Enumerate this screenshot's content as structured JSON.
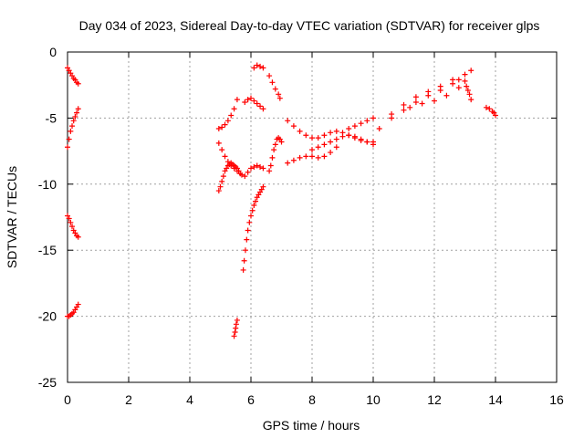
{
  "chart_data": {
    "type": "scatter",
    "title": "Day 034 of 2023, Sidereal Day-to-day VTEC variation (SDTVAR) for receiver glps",
    "xlabel": "GPS time / hours",
    "ylabel": "SDTVAR / TECUs",
    "xlim": [
      0,
      16
    ],
    "ylim": [
      -25,
      0
    ],
    "xticks": [
      0,
      2,
      4,
      6,
      8,
      10,
      12,
      14,
      16
    ],
    "yticks": [
      0,
      -5,
      -10,
      -15,
      -20,
      -25
    ],
    "xtick_labels": [
      "0",
      "2",
      "4",
      "6",
      "8",
      "10",
      "12",
      "14",
      "16"
    ],
    "ytick_labels": [
      "0",
      "-5",
      "-10",
      "-15",
      "-20",
      "-25"
    ],
    "grid": true,
    "marker": "+",
    "color": "#ff0000",
    "series": [
      {
        "name": "s1",
        "x": [
          0.0,
          0.05,
          0.1,
          0.15,
          0.2,
          0.25,
          0.3,
          0.35
        ],
        "y": [
          -1.2,
          -1.4,
          -1.6,
          -1.8,
          -2.0,
          -2.1,
          -2.3,
          -2.4
        ]
      },
      {
        "name": "s2",
        "x": [
          0.0,
          0.05,
          0.1,
          0.15,
          0.2,
          0.25,
          0.3,
          0.35
        ],
        "y": [
          -7.2,
          -6.6,
          -6.0,
          -5.6,
          -5.2,
          -4.9,
          -4.6,
          -4.3
        ]
      },
      {
        "name": "s3",
        "x": [
          0.0,
          0.05,
          0.1,
          0.15,
          0.2,
          0.25,
          0.3,
          0.35
        ],
        "y": [
          -12.4,
          -12.6,
          -12.9,
          -13.2,
          -13.5,
          -13.7,
          -13.9,
          -14.0
        ]
      },
      {
        "name": "s4",
        "x": [
          0.0,
          0.05,
          0.1,
          0.15,
          0.2,
          0.25,
          0.3,
          0.35
        ],
        "y": [
          -20.0,
          -20.0,
          -19.9,
          -19.8,
          -19.7,
          -19.5,
          -19.3,
          -19.1
        ]
      },
      {
        "name": "s5",
        "x": [
          4.95,
          5.0,
          5.05,
          5.1,
          5.15,
          5.2,
          5.25,
          5.3,
          5.35,
          5.4,
          5.45,
          5.5,
          5.55,
          5.6,
          5.65,
          5.7
        ],
        "y": [
          -10.5,
          -10.2,
          -9.8,
          -9.4,
          -9.0,
          -8.8,
          -8.6,
          -8.5,
          -8.4,
          -8.5,
          -8.6,
          -8.7,
          -8.8,
          -9.0,
          -9.2,
          -9.3
        ]
      },
      {
        "name": "s6",
        "x": [
          4.95,
          5.05,
          5.15,
          5.25,
          5.35,
          5.45,
          5.55
        ],
        "y": [
          -6.9,
          -7.4,
          -7.9,
          -8.3,
          -8.6,
          -8.8,
          -9.0
        ]
      },
      {
        "name": "s7",
        "x": [
          4.95,
          5.05,
          5.15,
          5.25,
          5.35,
          5.45,
          5.55
        ],
        "y": [
          -5.8,
          -5.7,
          -5.5,
          -5.2,
          -4.8,
          -4.3,
          -3.6
        ]
      },
      {
        "name": "s8",
        "x": [
          5.45,
          5.48,
          5.5,
          5.52,
          5.55
        ],
        "y": [
          -21.5,
          -21.2,
          -20.9,
          -20.6,
          -20.3
        ]
      },
      {
        "name": "s9",
        "x": [
          5.75,
          5.78,
          5.82,
          5.86,
          5.9,
          5.95,
          6.0,
          6.05,
          6.1,
          6.15,
          6.2,
          6.25,
          6.3,
          6.35,
          6.4
        ],
        "y": [
          -16.5,
          -15.8,
          -15.0,
          -14.2,
          -13.5,
          -12.9,
          -12.4,
          -12.0,
          -11.6,
          -11.3,
          -11.0,
          -10.8,
          -10.6,
          -10.4,
          -10.2
        ]
      },
      {
        "name": "s10",
        "x": [
          5.8,
          5.9,
          6.0,
          6.1,
          6.2,
          6.3,
          6.4
        ],
        "y": [
          -9.4,
          -9.1,
          -8.8,
          -8.7,
          -8.6,
          -8.7,
          -8.8
        ]
      },
      {
        "name": "s11",
        "x": [
          5.8,
          5.9,
          6.0,
          6.1,
          6.2,
          6.3,
          6.4
        ],
        "y": [
          -3.8,
          -3.6,
          -3.5,
          -3.7,
          -3.9,
          -4.1,
          -4.3
        ]
      },
      {
        "name": "s12",
        "x": [
          6.1,
          6.2,
          6.3,
          6.4
        ],
        "y": [
          -1.2,
          -1.0,
          -1.1,
          -1.2
        ]
      },
      {
        "name": "s13",
        "x": [
          6.6,
          6.7,
          6.8,
          6.9,
          6.95
        ],
        "y": [
          -1.8,
          -2.3,
          -2.8,
          -3.2,
          -3.5
        ]
      },
      {
        "name": "s14",
        "x": [
          6.6,
          6.65,
          6.7,
          6.75,
          6.8,
          6.85,
          6.9,
          6.95,
          7.0
        ],
        "y": [
          -9.0,
          -8.6,
          -8.0,
          -7.4,
          -7.0,
          -6.6,
          -6.5,
          -6.6,
          -6.8
        ]
      },
      {
        "name": "s15",
        "x": [
          7.2,
          7.4,
          7.6,
          7.8,
          8.0,
          8.2,
          8.4,
          8.6,
          8.8
        ],
        "y": [
          -8.4,
          -8.2,
          -8.0,
          -7.9,
          -7.9,
          -8.0,
          -7.9,
          -7.6,
          -7.2
        ]
      },
      {
        "name": "s16",
        "x": [
          7.2,
          7.4,
          7.6,
          7.8,
          8.0,
          8.2,
          8.4,
          8.6,
          8.8,
          9.0,
          9.2,
          9.4,
          9.6,
          9.8,
          10.0
        ],
        "y": [
          -5.2,
          -5.6,
          -6.0,
          -6.3,
          -6.5,
          -6.5,
          -6.3,
          -6.1,
          -6.0,
          -6.1,
          -6.3,
          -6.5,
          -6.7,
          -6.8,
          -6.8
        ]
      },
      {
        "name": "s17",
        "x": [
          8.0,
          8.2,
          8.4,
          8.6,
          8.8,
          9.0,
          9.2,
          9.4,
          9.6,
          9.8,
          10.0
        ],
        "y": [
          -7.4,
          -7.2,
          -7.0,
          -6.8,
          -6.6,
          -6.4,
          -6.3,
          -6.4,
          -6.6,
          -6.8,
          -7.0
        ]
      },
      {
        "name": "s18",
        "x": [
          9.2,
          9.4,
          9.6,
          9.8,
          10.0
        ],
        "y": [
          -5.8,
          -5.6,
          -5.4,
          -5.2,
          -5.0
        ]
      },
      {
        "name": "s19",
        "x": [
          10.2,
          10.6,
          11.0,
          11.4,
          11.8,
          12.2,
          12.6,
          12.8
        ],
        "y": [
          -5.8,
          -5.0,
          -4.4,
          -3.8,
          -3.3,
          -2.9,
          -2.4,
          -2.1
        ]
      },
      {
        "name": "s20",
        "x": [
          10.6,
          11.0,
          11.4,
          11.8,
          12.2,
          12.6,
          13.0,
          13.2
        ],
        "y": [
          -4.7,
          -4.0,
          -3.4,
          -3.0,
          -2.6,
          -2.1,
          -1.7,
          -1.4
        ]
      },
      {
        "name": "s21",
        "x": [
          11.2,
          11.6,
          12.0,
          12.4,
          12.8
        ],
        "y": [
          -4.2,
          -3.9,
          -3.7,
          -3.3,
          -2.7
        ]
      },
      {
        "name": "s22",
        "x": [
          13.0,
          13.05,
          13.1,
          13.15,
          13.2
        ],
        "y": [
          -2.2,
          -2.6,
          -2.9,
          -3.2,
          -3.6
        ]
      },
      {
        "name": "s23",
        "x": [
          13.7,
          13.8,
          13.9,
          13.95,
          14.0
        ],
        "y": [
          -4.2,
          -4.3,
          -4.5,
          -4.6,
          -4.8
        ]
      }
    ]
  }
}
